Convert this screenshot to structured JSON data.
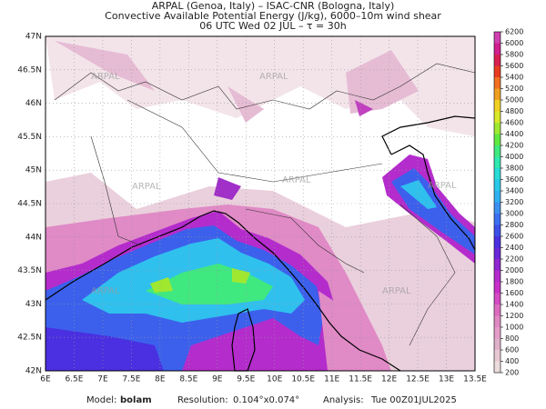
{
  "header": {
    "line1": "ARPAL (Genoa, Italy)  –  ISAC-CNR (Bologna, Italy)",
    "line2": "Convective Available Potential Energy (J/kg), 6000–10m wind shear",
    "line3": "06 UTC Wed 02 JUL  –  τ = 30h"
  },
  "watermark": "ARPAL",
  "map": {
    "xlim": [
      6,
      13.5
    ],
    "ylim": [
      42,
      47
    ],
    "xticks": [
      {
        "value": 6,
        "label": "6E"
      },
      {
        "value": 6.5,
        "label": "6.5E"
      },
      {
        "value": 7,
        "label": "7E"
      },
      {
        "value": 7.5,
        "label": "7.5E"
      },
      {
        "value": 8,
        "label": "8E"
      },
      {
        "value": 8.5,
        "label": "8.5E"
      },
      {
        "value": 9,
        "label": "9E"
      },
      {
        "value": 9.5,
        "label": "9.5E"
      },
      {
        "value": 10,
        "label": "10E"
      },
      {
        "value": 10.5,
        "label": "10.5E"
      },
      {
        "value": 11,
        "label": "11E"
      },
      {
        "value": 11.5,
        "label": "11.5E"
      },
      {
        "value": 12,
        "label": "12E"
      },
      {
        "value": 12.5,
        "label": "12.5E"
      },
      {
        "value": 13,
        "label": "13E"
      },
      {
        "value": 13.5,
        "label": "13.5E"
      }
    ],
    "yticks": [
      {
        "value": 42,
        "label": "42N"
      },
      {
        "value": 42.5,
        "label": "42.5N"
      },
      {
        "value": 43,
        "label": "43N"
      },
      {
        "value": 43.5,
        "label": "43.5N"
      },
      {
        "value": 44,
        "label": "44N"
      },
      {
        "value": 44.5,
        "label": "44.5N"
      },
      {
        "value": 45,
        "label": "45N"
      },
      {
        "value": 45.5,
        "label": "45.5N"
      },
      {
        "value": 46,
        "label": "46N"
      },
      {
        "value": 46.5,
        "label": "46.5N"
      },
      {
        "value": 47,
        "label": "47N"
      }
    ],
    "grid": true
  },
  "colorbar": {
    "levels": [
      200,
      400,
      600,
      800,
      1000,
      1200,
      1400,
      1600,
      1800,
      2000,
      2200,
      2400,
      2600,
      2800,
      3000,
      3200,
      3400,
      3600,
      3800,
      4000,
      4200,
      4400,
      4600,
      4800,
      5000,
      5200,
      5400,
      5600,
      5800,
      6000,
      6200
    ],
    "colors": [
      "#ecdcdc",
      "#e8c8d4",
      "#e0b0c8",
      "#e49cc8",
      "#e088c4",
      "#dc6cc0",
      "#d44cc4",
      "#c830c8",
      "#b42ccc",
      "#9028d0",
      "#6a28d8",
      "#4a30e0",
      "#3c50e8",
      "#3c70f0",
      "#3c90f0",
      "#30b0f0",
      "#28c8e8",
      "#28dcd8",
      "#30e8b0",
      "#40e880",
      "#60e840",
      "#a0e830",
      "#d8e828",
      "#f0d020",
      "#f0a020",
      "#f07020",
      "#e83c20",
      "#d82050",
      "#d02090",
      "#d040b0"
    ]
  },
  "footer": {
    "model_label": "Model:",
    "model": "bolam",
    "resolution_label": "Resolution:",
    "resolution": "0.104°x0.074°",
    "analysis_label": "Analysis:",
    "analysis": "Tue 00Z01JUL2025"
  }
}
